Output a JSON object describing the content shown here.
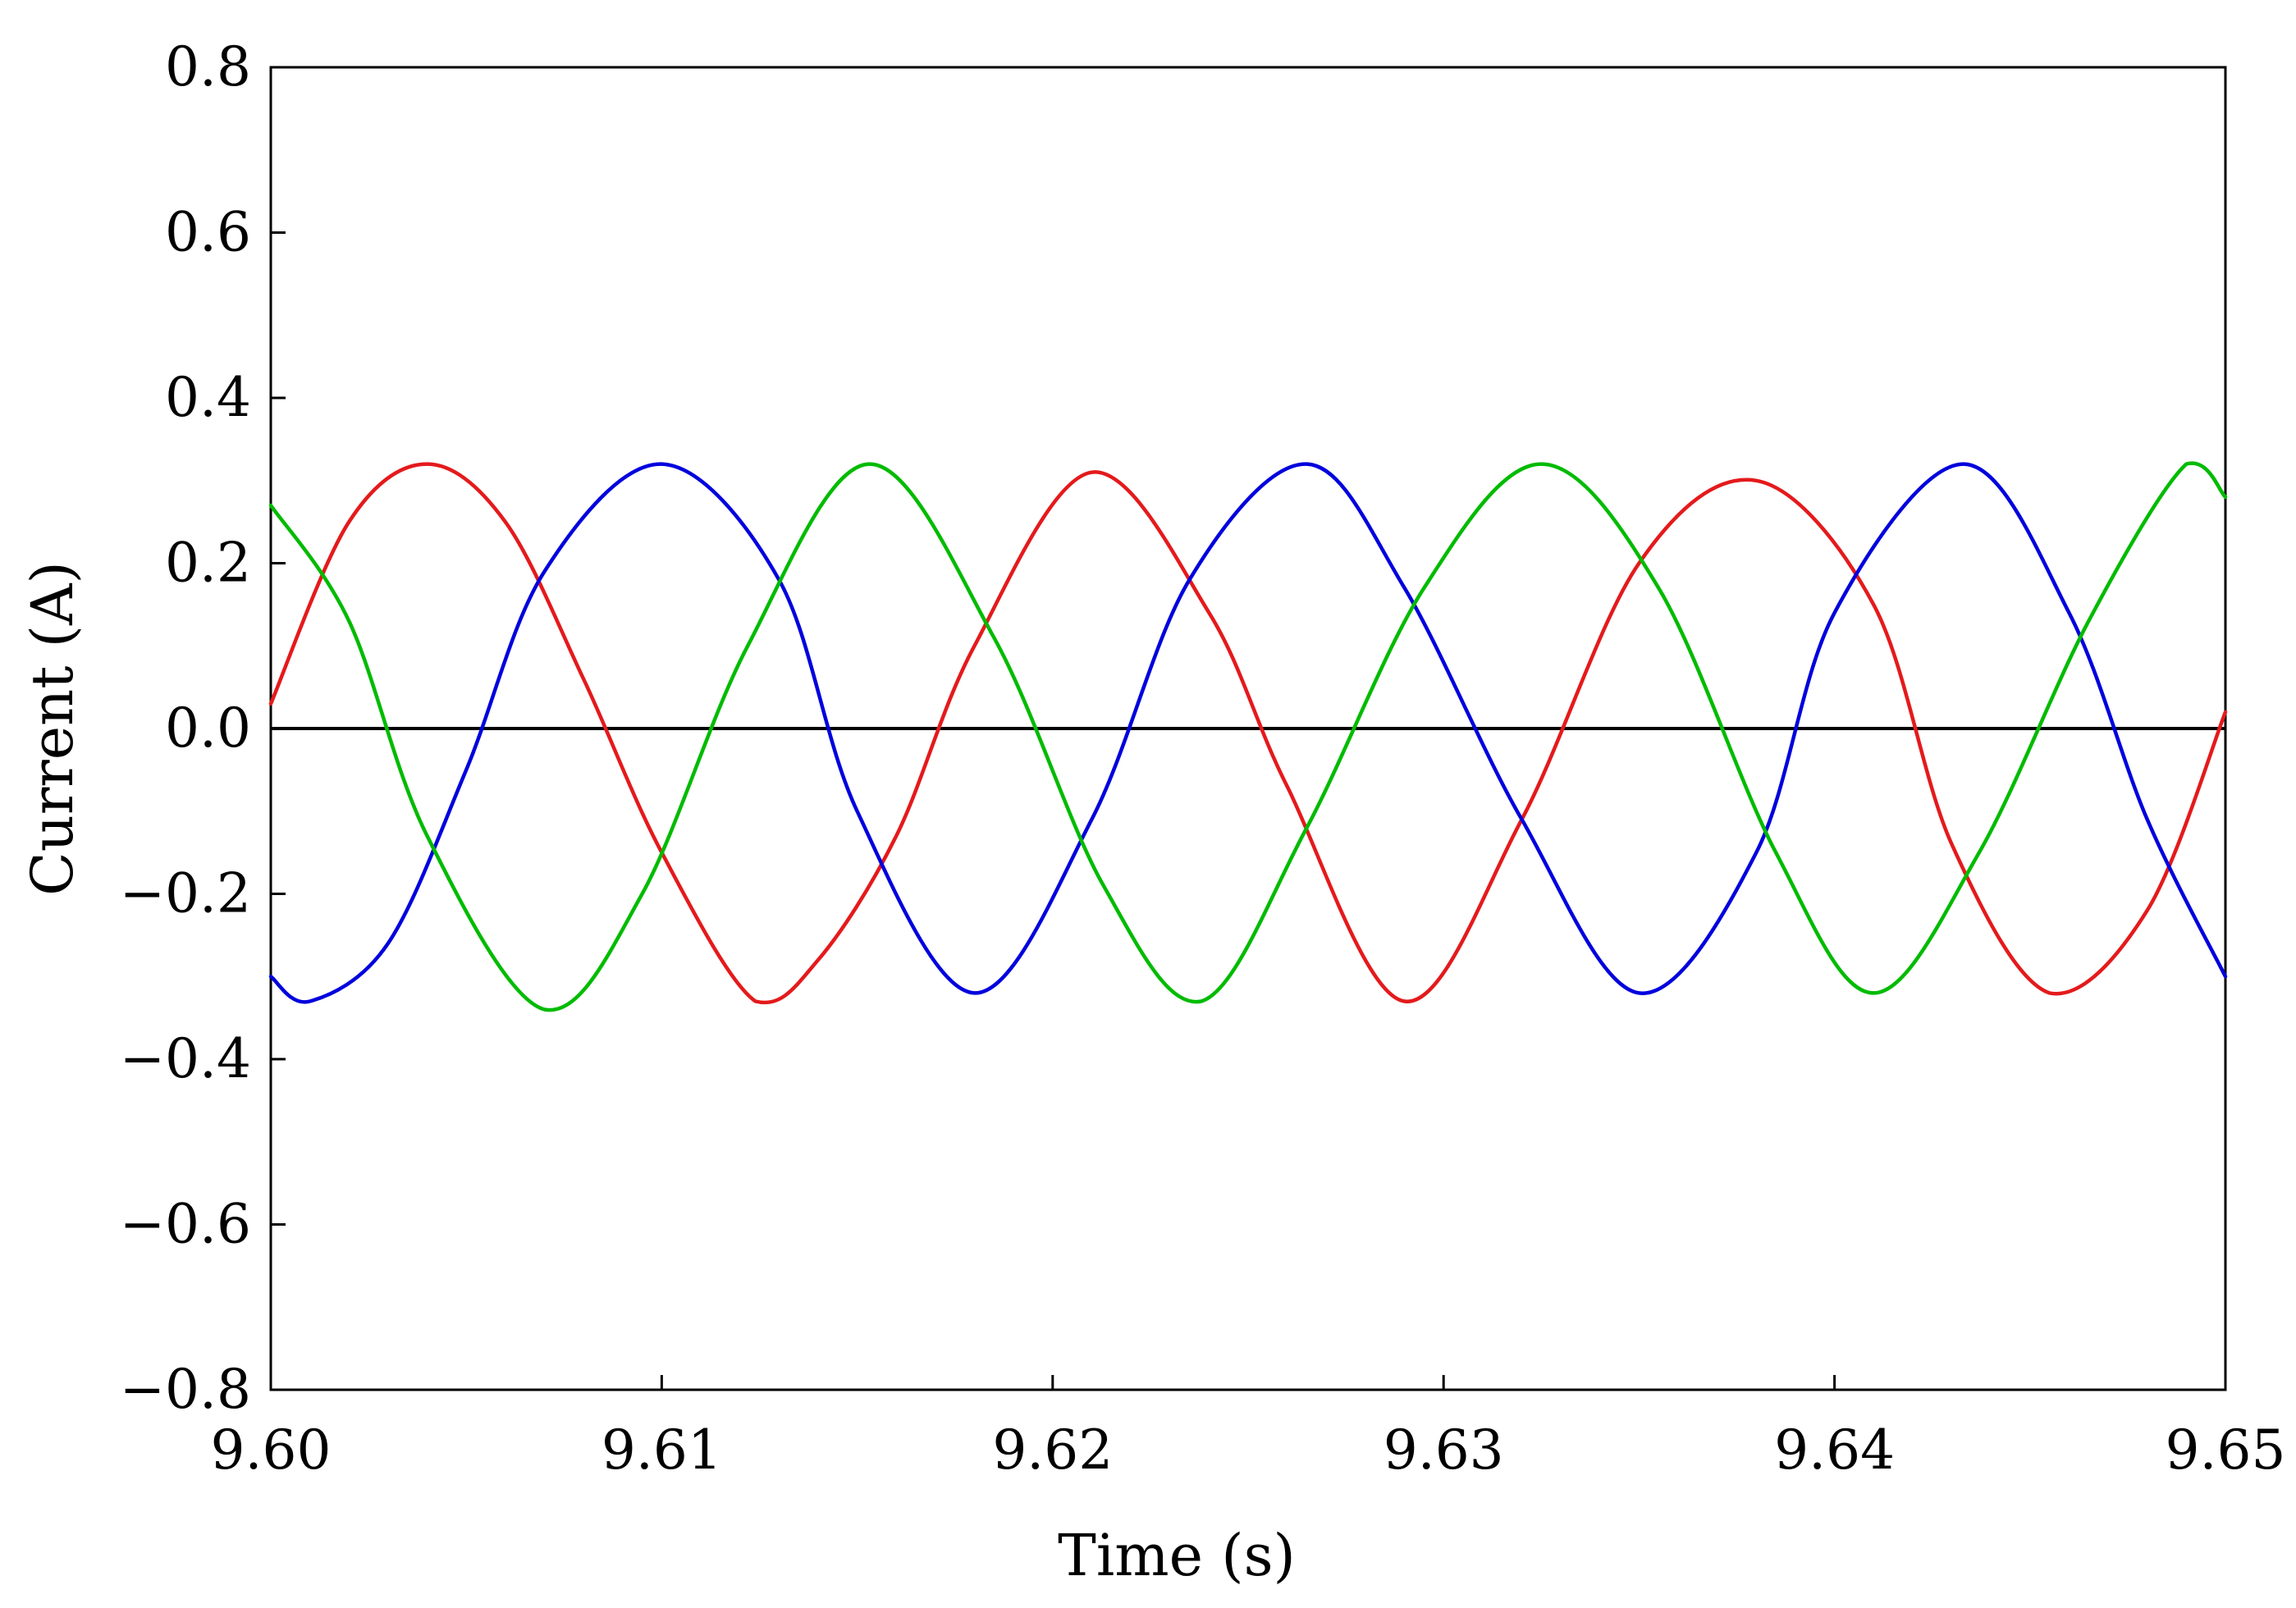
{
  "chart_data": {
    "type": "line",
    "title": "",
    "xlabel": "Time (s)",
    "ylabel": "Current (A)",
    "xlim": [
      9.6,
      9.65
    ],
    "ylim": [
      -0.8,
      0.8
    ],
    "x_ticks": [
      "9.60",
      "9.61",
      "9.62",
      "9.63",
      "9.64",
      "9.65"
    ],
    "y_ticks": [
      "0.8",
      "0.6",
      "0.4",
      "0.2",
      "0.0",
      "−0.2",
      "−0.4",
      "−0.6",
      "−0.8"
    ],
    "grid": false,
    "legend": "none",
    "zero_line": 0.0,
    "series": [
      {
        "color": "#e41a1c",
        "x": [
          9.6,
          9.602,
          9.604,
          9.606,
          9.608,
          9.61,
          9.6124,
          9.614,
          9.616,
          9.618,
          9.621,
          9.624,
          9.626,
          9.629,
          9.632,
          9.635,
          9.638,
          9.641,
          9.643,
          9.6455,
          9.648,
          9.65
        ],
        "y": [
          0.03,
          0.25,
          0.32,
          0.25,
          0.06,
          -0.15,
          -0.33,
          -0.28,
          -0.13,
          0.1,
          0.31,
          0.14,
          -0.07,
          -0.33,
          -0.11,
          0.2,
          0.3,
          0.15,
          -0.14,
          -0.32,
          -0.22,
          0.02
        ]
      },
      {
        "color": "#0000dd",
        "x": [
          9.6,
          9.601,
          9.603,
          9.605,
          9.607,
          9.61,
          9.613,
          9.615,
          9.618,
          9.621,
          9.6235,
          9.6265,
          9.629,
          9.632,
          9.635,
          9.638,
          9.64,
          9.6433,
          9.646,
          9.648,
          9.65
        ],
        "y": [
          -0.3,
          -0.33,
          -0.26,
          -0.05,
          0.19,
          0.32,
          0.18,
          -0.1,
          -0.32,
          -0.11,
          0.18,
          0.32,
          0.17,
          -0.11,
          -0.32,
          -0.15,
          0.14,
          0.32,
          0.14,
          -0.11,
          -0.3
        ]
      },
      {
        "color": "#00bb00",
        "x": [
          9.6,
          9.602,
          9.604,
          9.607,
          9.6095,
          9.6122,
          9.6153,
          9.6185,
          9.6213,
          9.6238,
          9.6265,
          9.6295,
          9.6325,
          9.6355,
          9.6385,
          9.641,
          9.6437,
          9.6465,
          9.649,
          9.65
        ],
        "y": [
          0.27,
          0.13,
          -0.13,
          -0.34,
          -0.2,
          0.1,
          0.32,
          0.11,
          -0.19,
          -0.33,
          -0.12,
          0.17,
          0.32,
          0.17,
          -0.15,
          -0.32,
          -0.15,
          0.13,
          0.32,
          0.28
        ]
      }
    ]
  }
}
